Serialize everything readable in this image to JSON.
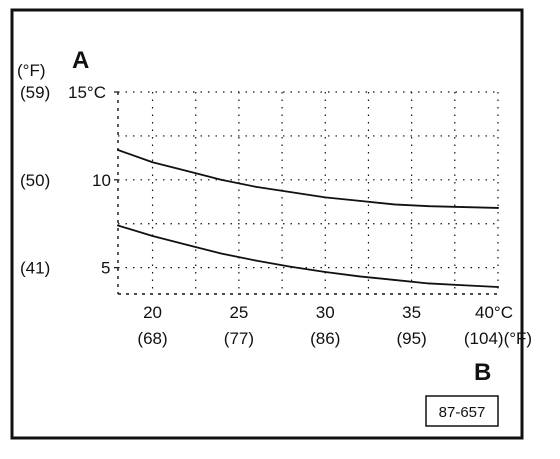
{
  "figure": {
    "axis_letter_y": "A",
    "axis_letter_x": "B",
    "reference_code": "87-657"
  },
  "colors": {
    "ink": "#111111",
    "background": "#ffffff"
  },
  "chart_data": {
    "type": "line",
    "title": "",
    "xlabel": "",
    "ylabel": "",
    "x_unit_label": "°C",
    "x_alt_unit_label": "(°F)",
    "y_unit_label": "°C",
    "y_alt_unit_label": "(°F)",
    "xlim": [
      18,
      40
    ],
    "ylim": [
      3.5,
      15
    ],
    "grid": true,
    "grid_style": "dotted",
    "legend": "none",
    "x_ticks": [
      {
        "value": 20,
        "label": "20",
        "alt_label": "(68)"
      },
      {
        "value": 25,
        "label": "25",
        "alt_label": "(77)"
      },
      {
        "value": 30,
        "label": "30",
        "alt_label": "(86)"
      },
      {
        "value": 35,
        "label": "35",
        "alt_label": "(95)"
      },
      {
        "value": 40,
        "label": "40°C",
        "alt_label": "(104)(°F)"
      }
    ],
    "y_ticks": [
      {
        "value": 5,
        "label": "5",
        "alt_label": "(41)"
      },
      {
        "value": 10,
        "label": "10",
        "alt_label": "(50)"
      },
      {
        "value": 15,
        "label": "15°C",
        "alt_label": "(59)"
      }
    ],
    "y_alt_header": "(°F)",
    "series": [
      {
        "x": [
          18,
          20,
          22,
          24,
          26,
          28,
          30,
          32,
          34,
          36,
          38,
          40
        ],
        "y": [
          11.7,
          11.0,
          10.5,
          10.0,
          9.6,
          9.3,
          9.0,
          8.8,
          8.6,
          8.5,
          8.45,
          8.4
        ]
      },
      {
        "x": [
          18,
          20,
          22,
          24,
          26,
          28,
          30,
          32,
          34,
          36,
          38,
          40
        ],
        "y": [
          7.4,
          6.8,
          6.3,
          5.8,
          5.4,
          5.05,
          4.75,
          4.5,
          4.3,
          4.1,
          4.0,
          3.9
        ]
      }
    ]
  }
}
